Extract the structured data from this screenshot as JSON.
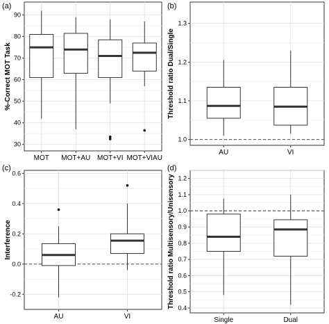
{
  "chart_data": [
    {
      "panel": "(a)",
      "type": "boxplot",
      "ylabel": "%-Correct MOT Task",
      "ylim": [
        27,
        96
      ],
      "yticks": [
        30,
        40,
        50,
        60,
        70,
        80,
        90
      ],
      "categories": [
        "MOT",
        "MOT+AU",
        "MOT+VI",
        "MOT+VIAU"
      ],
      "boxes": [
        {
          "whisker_low": 42,
          "q1": 61,
          "median": 75,
          "q3": 81,
          "whisker_high": 92,
          "outliers": []
        },
        {
          "whisker_low": 37,
          "q1": 63,
          "median": 74,
          "q3": 81.5,
          "whisker_high": 89,
          "outliers": []
        },
        {
          "whisker_low": 49,
          "q1": 61,
          "median": 71,
          "q3": 78.5,
          "whisker_high": 88,
          "outliers": [
            32.5,
            33.5
          ]
        },
        {
          "whisker_low": 57,
          "q1": 64,
          "median": 72.5,
          "q3": 77,
          "whisker_high": 87,
          "outliers": [
            36.5
          ]
        }
      ],
      "ref_line": null,
      "grid": true
    },
    {
      "panel": "(b)",
      "type": "boxplot",
      "ylabel": "Threshold ratio Dual/Single",
      "ylim": [
        0.985,
        1.355
      ],
      "yticks": [
        1.0,
        1.1,
        1.2,
        1.3
      ],
      "yticklabels": [
        "1.0",
        "1.1",
        "1.2",
        "1.3"
      ],
      "categories": [
        "AU",
        "VI"
      ],
      "boxes": [
        {
          "whisker_low": 1.01,
          "q1": 1.055,
          "median": 1.087,
          "q3": 1.135,
          "whisker_high": 1.205,
          "outliers": []
        },
        {
          "whisker_low": 1.015,
          "q1": 1.037,
          "median": 1.085,
          "q3": 1.135,
          "whisker_high": 1.23,
          "outliers": []
        }
      ],
      "ref_line": 1.0,
      "grid": true
    },
    {
      "panel": "(c)",
      "type": "boxplot",
      "ylabel": "Interference",
      "ylim": [
        -0.3,
        0.62
      ],
      "yticks": [
        -0.2,
        0.0,
        0.2,
        0.4,
        0.6
      ],
      "yticklabels": [
        "-0.2",
        "0.0",
        "0.2",
        "0.4",
        "0.6"
      ],
      "categories": [
        "AU",
        "VI"
      ],
      "boxes": [
        {
          "whisker_low": -0.22,
          "q1": -0.01,
          "median": 0.06,
          "q3": 0.135,
          "whisker_high": 0.25,
          "outliers": [
            0.36
          ]
        },
        {
          "whisker_low": -0.04,
          "q1": 0.07,
          "median": 0.155,
          "q3": 0.2,
          "whisker_high": 0.4,
          "outliers": [
            0.52
          ]
        }
      ],
      "ref_line": 0.0,
      "grid": true
    },
    {
      "panel": "(d)",
      "type": "boxplot",
      "ylabel": "Threshold ratio Multisensory/Unisensory",
      "ylim": [
        0.37,
        1.25
      ],
      "yticks": [
        0.4,
        0.5,
        0.6,
        0.7,
        0.8,
        0.9,
        1.0,
        1.1,
        1.2
      ],
      "yticklabels": [
        "0.4",
        "0.5",
        "0.6",
        "0.7",
        "0.8",
        "0.9",
        "1.0",
        "1.1",
        "1.2"
      ],
      "categories": [
        "Single",
        "Dual"
      ],
      "boxes": [
        {
          "whisker_low": 0.48,
          "q1": 0.75,
          "median": 0.84,
          "q3": 0.98,
          "whisker_high": 1.075,
          "outliers": []
        },
        {
          "whisker_low": 0.42,
          "q1": 0.72,
          "median": 0.885,
          "q3": 0.945,
          "whisker_high": 1.1,
          "outliers": []
        }
      ],
      "ref_line": 1.0,
      "grid": true
    }
  ]
}
